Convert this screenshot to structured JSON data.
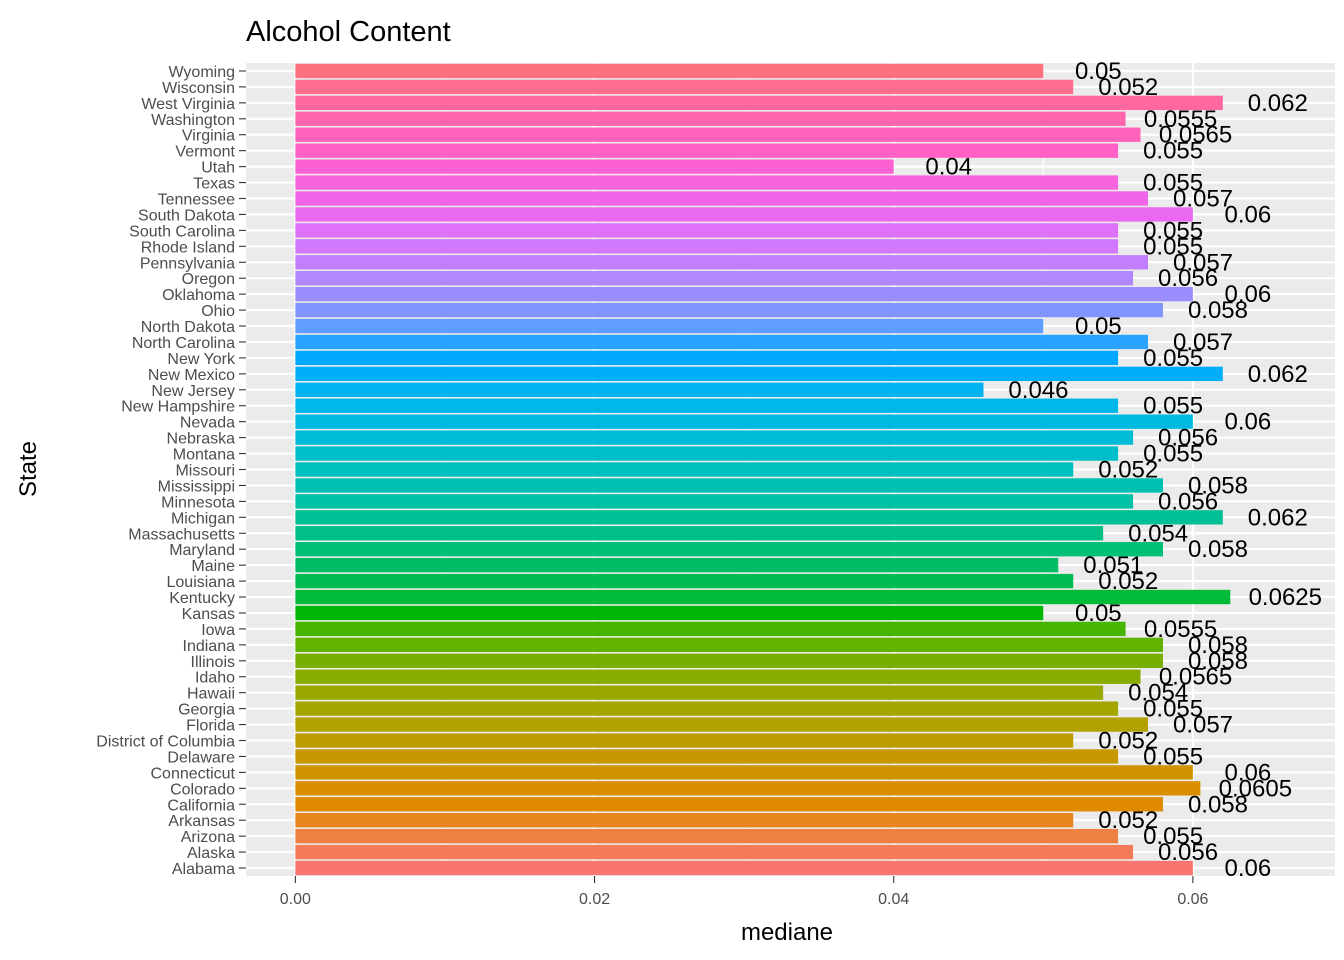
{
  "chart_data": {
    "type": "bar",
    "orientation": "horizontal",
    "title": "Alcohol  Content",
    "xlabel": "mediane",
    "ylabel": "State",
    "xlim": [
      -0.0033,
      0.0695
    ],
    "xticks": [
      0.0,
      0.02,
      0.04,
      0.06
    ],
    "xtick_labels": [
      "0.00",
      "0.02",
      "0.04",
      "0.06"
    ],
    "grid": true,
    "legend": "none",
    "categories": [
      "Alabama",
      "Alaska",
      "Arizona",
      "Arkansas",
      "California",
      "Colorado",
      "Connecticut",
      "Delaware",
      "District of Columbia",
      "Florida",
      "Georgia",
      "Hawaii",
      "Idaho",
      "Illinois",
      "Indiana",
      "Iowa",
      "Kansas",
      "Kentucky",
      "Louisiana",
      "Maine",
      "Maryland",
      "Massachusetts",
      "Michigan",
      "Minnesota",
      "Mississippi",
      "Missouri",
      "Montana",
      "Nebraska",
      "Nevada",
      "New Hampshire",
      "New Jersey",
      "New Mexico",
      "New York",
      "North Carolina",
      "North Dakota",
      "Ohio",
      "Oklahoma",
      "Oregon",
      "Pennsylvania",
      "Rhode Island",
      "South Carolina",
      "South Dakota",
      "Tennessee",
      "Texas",
      "Utah",
      "Vermont",
      "Virginia",
      "Washington",
      "West Virginia",
      "Wisconsin",
      "Wyoming"
    ],
    "values": [
      0.06,
      0.056,
      0.055,
      0.052,
      0.058,
      0.0605,
      0.06,
      0.055,
      0.052,
      0.057,
      0.055,
      0.054,
      0.0565,
      0.058,
      0.058,
      0.0555,
      0.05,
      0.0625,
      0.052,
      0.051,
      0.058,
      0.054,
      0.062,
      0.056,
      0.058,
      0.052,
      0.055,
      0.056,
      0.06,
      0.055,
      0.046,
      0.062,
      0.055,
      0.057,
      0.05,
      0.058,
      0.06,
      0.056,
      0.057,
      0.055,
      0.055,
      0.06,
      0.057,
      0.055,
      0.04,
      0.055,
      0.0565,
      0.0555,
      0.062,
      0.052,
      0.05
    ],
    "value_labels": [
      "0.06",
      "0.056",
      "0.055",
      "0.052",
      "0.058",
      "0.0605",
      "0.06",
      "0.055",
      "0.052",
      "0.057",
      "0.055",
      "0.054",
      "0.0565",
      "0.058",
      "0.058",
      "0.0555",
      "0.05",
      "0.0625",
      "0.052",
      "0.051",
      "0.058",
      "0.054",
      "0.062",
      "0.056",
      "0.058",
      "0.052",
      "0.055",
      "0.056",
      "0.06",
      "0.055",
      "0.046",
      "0.062",
      "0.055",
      "0.057",
      "0.05",
      "0.058",
      "0.06",
      "0.056",
      "0.057",
      "0.055",
      "0.055",
      "0.06",
      "0.057",
      "0.055",
      "0.04",
      "0.055",
      "0.0565",
      "0.0555",
      "0.062",
      "0.052",
      "0.05"
    ],
    "colors": {
      "panel_background": "#ebebeb",
      "gridline": "#ffffff",
      "tick_text": "#4d4d4d",
      "tick_mark": "#333333",
      "bar_palette": "hue (one distinct color per state)"
    }
  }
}
